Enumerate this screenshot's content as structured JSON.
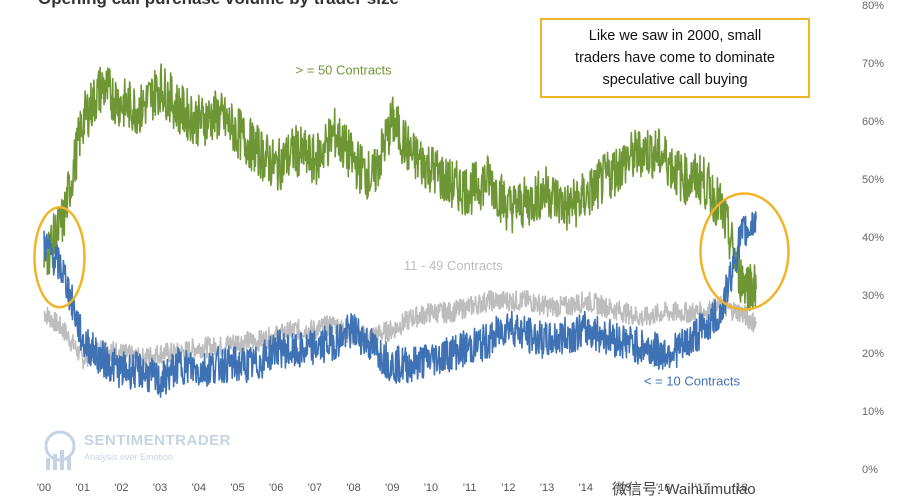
{
  "title": "Opening call purchase volume by trader size",
  "annotation": "Like we saw in 2000, small\ntraders have come to dominate\nspeculative call buying",
  "watermark": {
    "name": "SENTIMENTRADER",
    "tagline": "Analysis over Emotion"
  },
  "footer_caption": "微信号: Waihuimutiao",
  "colors": {
    "large": "#6e9634",
    "mid": "#bdbdbd",
    "small": "#3f72b4",
    "highlight": "#f0b429"
  },
  "chart_data": {
    "type": "line",
    "title": "Opening call purchase volume by trader size",
    "x_tick_labels": [
      "'00",
      "'01",
      "'02",
      "'03",
      "'04",
      "'05",
      "'06",
      "'07",
      "'08",
      "'09",
      "'10",
      "'11",
      "'12",
      "'13",
      "'14",
      "'15",
      "'16",
      "'17",
      "'18"
    ],
    "x": [
      2000.0,
      2000.5,
      2001.0,
      2001.5,
      2002.0,
      2002.5,
      2003.0,
      2003.5,
      2004.0,
      2004.5,
      2005.0,
      2005.5,
      2006.0,
      2006.5,
      2007.0,
      2007.5,
      2008.0,
      2008.5,
      2009.0,
      2009.5,
      2010.0,
      2010.5,
      2011.0,
      2011.5,
      2012.0,
      2012.5,
      2013.0,
      2013.5,
      2014.0,
      2014.5,
      2015.0,
      2015.5,
      2016.0,
      2016.5,
      2017.0,
      2017.5,
      2018.0,
      2018.4
    ],
    "series": [
      {
        "name": "> = 50 Contracts",
        "label": "> = 50 Contracts",
        "values": [
          36,
          43,
          60,
          66,
          63,
          62,
          66,
          62,
          60,
          61,
          58,
          55,
          52,
          55,
          53,
          58,
          53,
          50,
          60,
          54,
          52,
          49,
          48,
          50,
          45,
          46,
          48,
          45,
          47,
          50,
          53,
          55,
          54,
          50,
          50,
          45,
          33,
          31
        ]
      },
      {
        "name": "11 - 49 Contracts",
        "label": "11 - 49 Contracts",
        "values": [
          27,
          24,
          19,
          21,
          20,
          19,
          20,
          20,
          21,
          21,
          22,
          22,
          23,
          24,
          24,
          25,
          23,
          23,
          24,
          26,
          27,
          27,
          28,
          29,
          29,
          29,
          28,
          28,
          29,
          28,
          27,
          26,
          27,
          27,
          27,
          28,
          27,
          25
        ]
      },
      {
        "name": "< = 10 Contracts",
        "label": "< = 10 Contracts",
        "values": [
          39,
          34,
          22,
          19,
          17,
          17,
          15,
          18,
          17,
          18,
          18,
          18,
          21,
          20,
          21,
          22,
          24,
          21,
          18,
          18,
          19,
          20,
          21,
          22,
          25,
          23,
          22,
          23,
          24,
          23,
          22,
          21,
          20,
          21,
          24,
          27,
          40,
          43
        ]
      }
    ],
    "y_tick_labels": [
      "0%",
      "10%",
      "20%",
      "30%",
      "40%",
      "50%",
      "60%",
      "70%",
      "80%"
    ],
    "ylim": [
      0,
      80
    ],
    "xlim": [
      2000,
      2018.6
    ],
    "grid": false
  }
}
